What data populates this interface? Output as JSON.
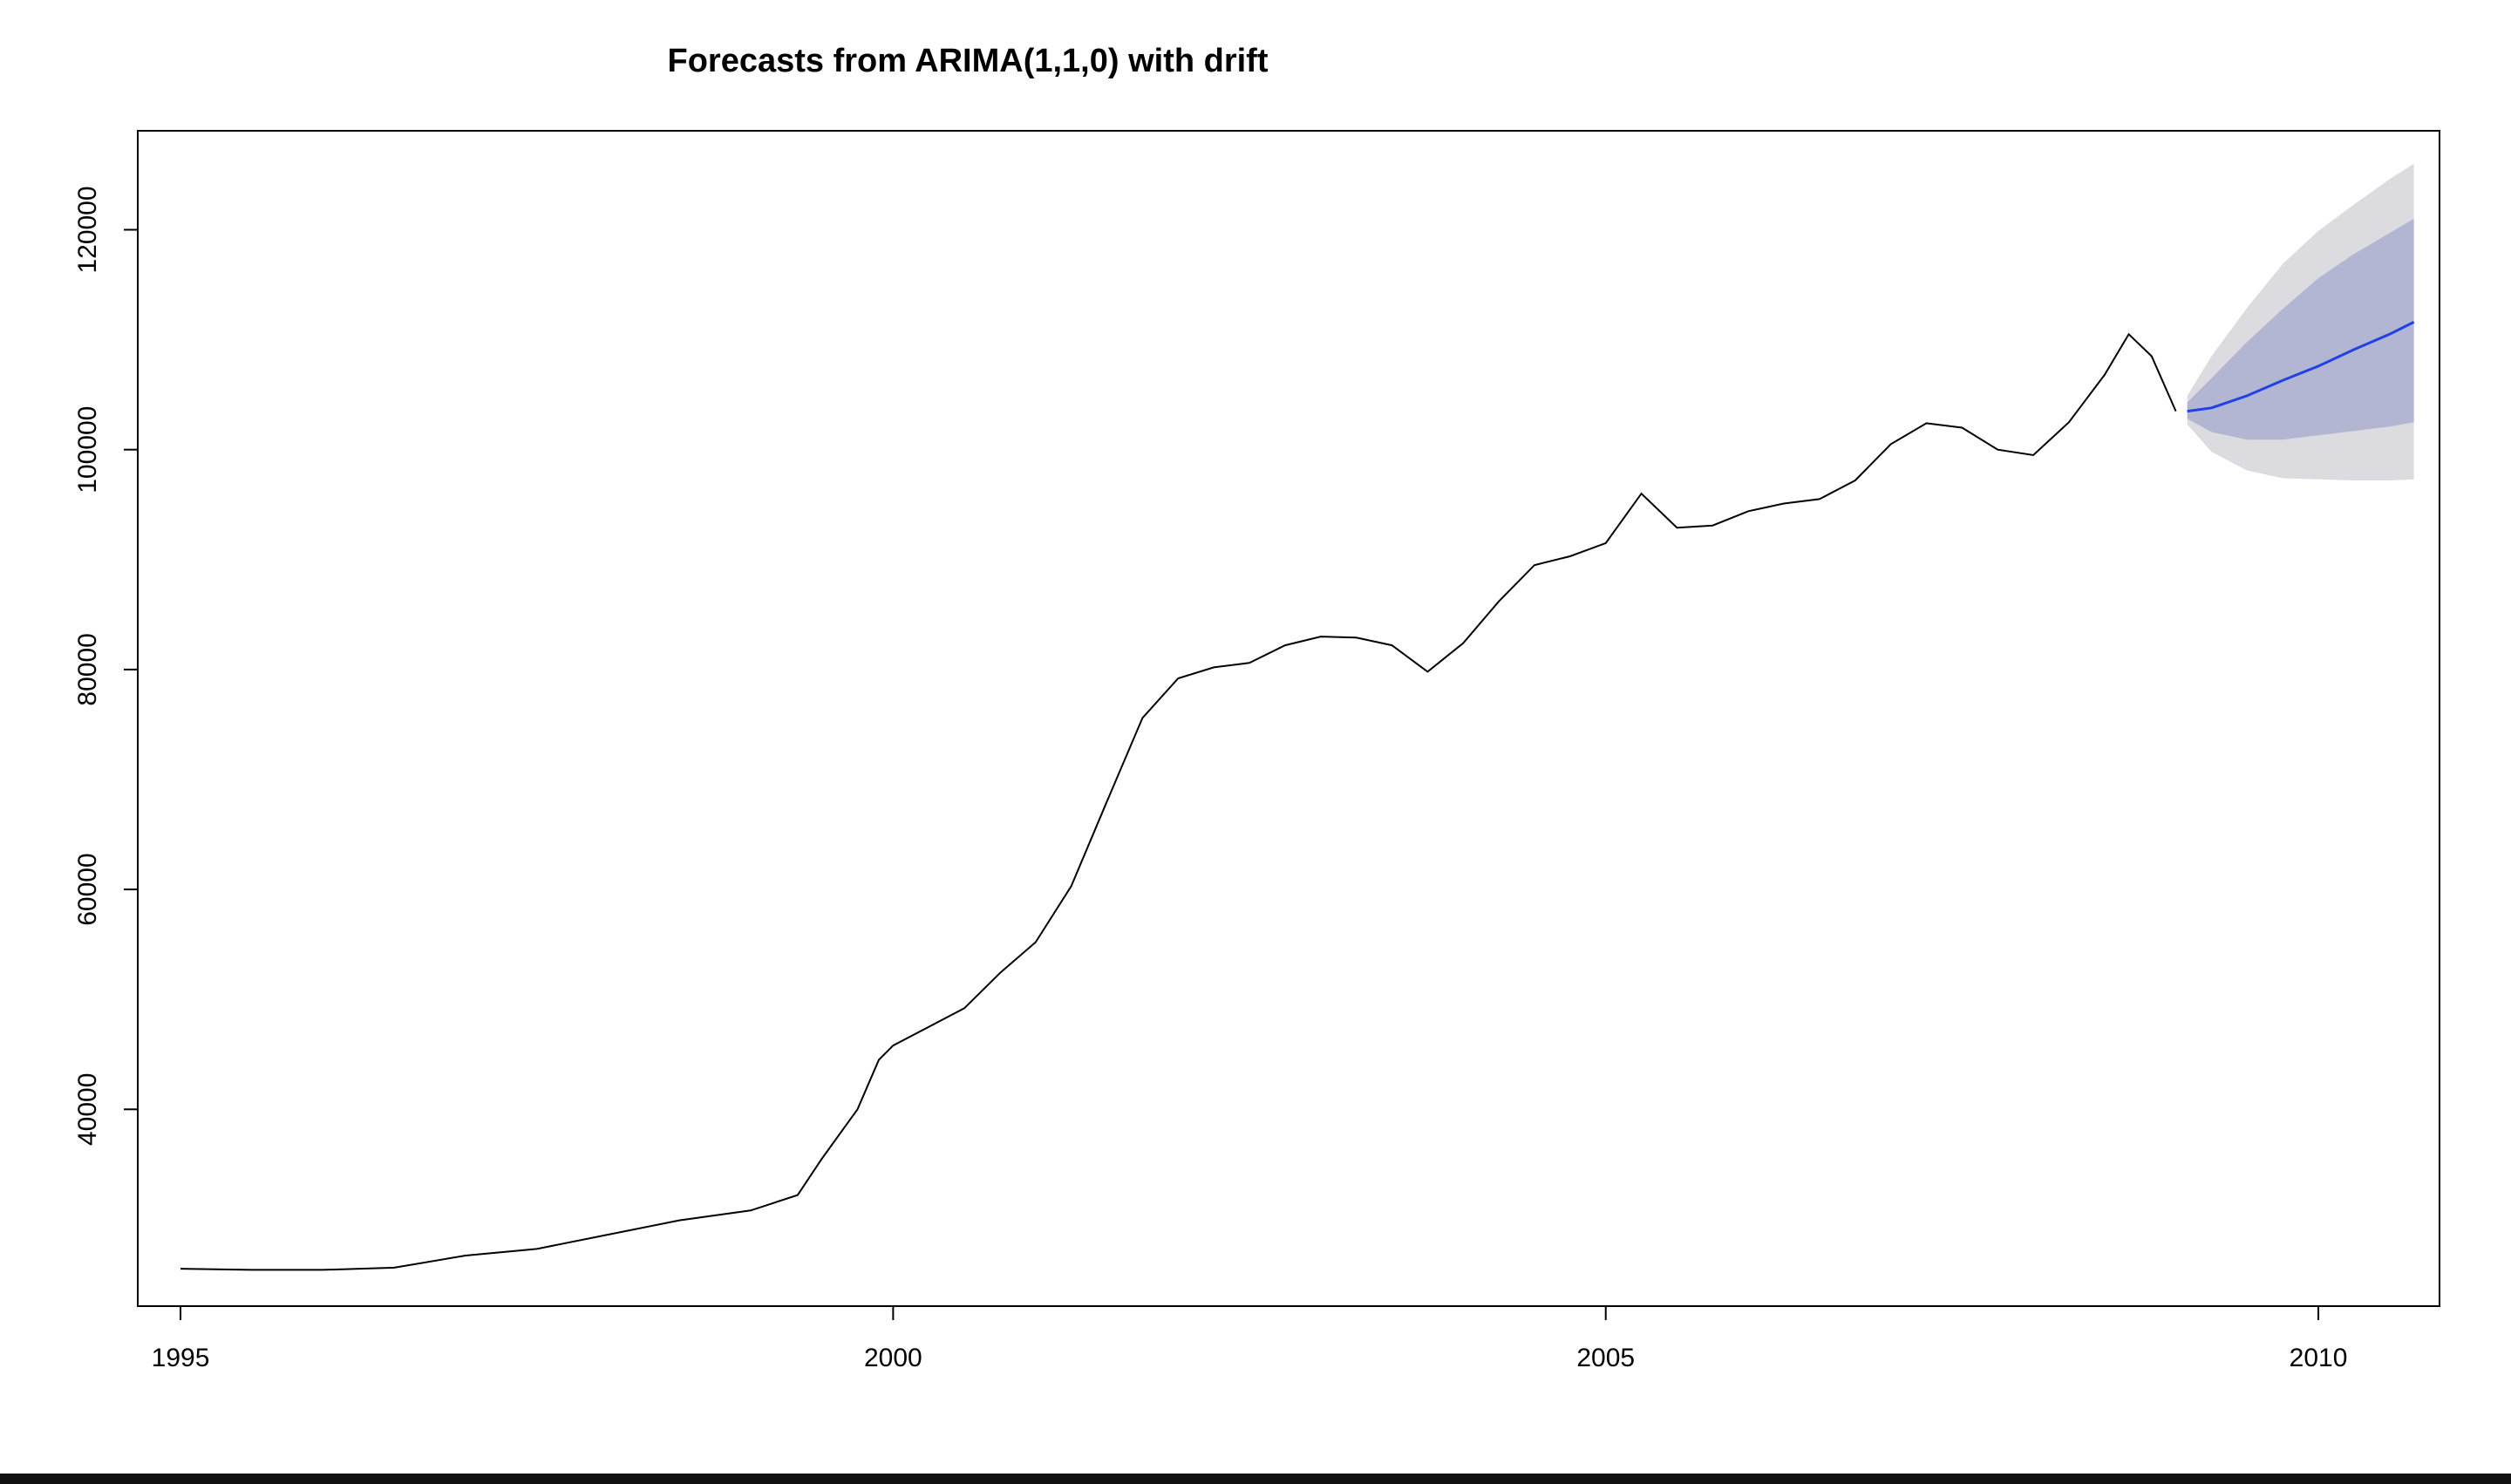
{
  "chart_data": {
    "type": "line",
    "title": "Forecasts from ARIMA(1,1,0) with drift",
    "xlabel": "",
    "ylabel": "",
    "xlim": [
      1994.7,
      2010.85
    ],
    "ylim": [
      22100,
      129000
    ],
    "x_ticks": [
      1995,
      2000,
      2005,
      2010
    ],
    "x_tick_labels": [
      "1995",
      "2000",
      "2005",
      "2010"
    ],
    "y_ticks": [
      40000,
      60000,
      80000,
      100000,
      120000
    ],
    "y_tick_labels": [
      "40000",
      "60000",
      "80000",
      "100000",
      "120000"
    ],
    "grid": false,
    "colors": {
      "history": "#000000",
      "forecast_mean": "#2040e8",
      "interval_95": "#dcdce0",
      "interval_80": "#b2b6d2"
    },
    "history": {
      "x": [
        1995.0,
        1995.5,
        1996.0,
        1996.5,
        1997.0,
        1997.5,
        1998.0,
        1998.5,
        1999.0,
        1999.33,
        1999.5,
        1999.75,
        1999.9,
        2000.0,
        2000.25,
        2000.5,
        2000.75,
        2001.0,
        2001.25,
        2001.5,
        2001.75,
        2002.0,
        2002.25,
        2002.5,
        2002.75,
        2003.0,
        2003.25,
        2003.5,
        2003.75,
        2004.0,
        2004.25,
        2004.5,
        2004.75,
        2005.0,
        2005.25,
        2005.5,
        2005.75,
        2006.0,
        2006.25,
        2006.5,
        2006.75,
        2007.0,
        2007.25,
        2007.5,
        2007.75,
        2008.0,
        2008.25,
        2008.5,
        2008.67,
        2008.83,
        2009.0
      ],
      "y": [
        25500,
        25400,
        25400,
        25600,
        26700,
        27300,
        28600,
        29900,
        30800,
        32200,
        35500,
        40000,
        44500,
        45800,
        47500,
        49200,
        52400,
        55200,
        60300,
        68000,
        75600,
        79200,
        80200,
        80600,
        82200,
        83000,
        82900,
        82200,
        79800,
        82400,
        86200,
        89500,
        90300,
        91500,
        96000,
        92900,
        93100,
        94400,
        95100,
        95500,
        97200,
        100500,
        102400,
        102000,
        100000,
        99500,
        102500,
        106800,
        110500,
        108500,
        103500
      ]
    },
    "forecast": {
      "x": [
        2009.08,
        2009.25,
        2009.5,
        2009.75,
        2010.0,
        2010.25,
        2010.5,
        2010.67
      ],
      "mean": [
        103500,
        103800,
        104900,
        106300,
        107600,
        109100,
        110500,
        111600
      ],
      "lo80": [
        102800,
        101600,
        100900,
        100900,
        101300,
        101700,
        102100,
        102500
      ],
      "hi80": [
        104300,
        106500,
        109800,
        112800,
        115600,
        117800,
        119700,
        121000
      ],
      "lo95": [
        102300,
        99800,
        98100,
        97400,
        97300,
        97200,
        97200,
        97300
      ],
      "hi95": [
        104900,
        108500,
        112900,
        116900,
        119900,
        122300,
        124600,
        126000
      ]
    }
  }
}
